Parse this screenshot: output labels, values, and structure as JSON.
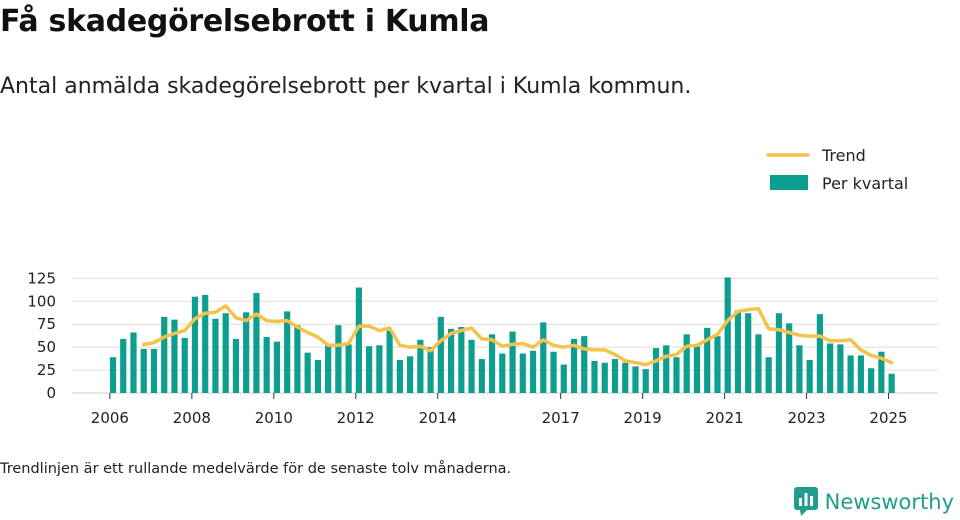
{
  "title": "Få skadegörelsebrott i Kumla",
  "subtitle": "Antal anmälda skadegörelsebrott per kvartal i Kumla kommun.",
  "footnote": "Trendlinjen är ett rullande medelvärde för de senaste tolv månaderna.",
  "brand": "Newsworthy",
  "colors": {
    "bar": "#0e9e90",
    "trend": "#f5c24c",
    "grid": "#dddddd",
    "brand": "#1f9e8e"
  },
  "chart_data": {
    "type": "bar",
    "x_ticks": [
      "2006",
      "2008",
      "2010",
      "2012",
      "2014",
      "2017",
      "2019",
      "2021",
      "2023",
      "2025"
    ],
    "y_ticks": [
      0,
      25,
      50,
      75,
      100,
      125
    ],
    "ylim": [
      0,
      128
    ],
    "grid": true,
    "legend_position": "top-right",
    "series": [
      {
        "name": "Per kvartal",
        "type": "bar",
        "x": [
          "2006Q1",
          "2006Q2",
          "2006Q3",
          "2006Q4",
          "2007Q1",
          "2007Q2",
          "2007Q3",
          "2007Q4",
          "2008Q1",
          "2008Q2",
          "2008Q3",
          "2008Q4",
          "2009Q1",
          "2009Q2",
          "2009Q3",
          "2009Q4",
          "2010Q1",
          "2010Q2",
          "2010Q3",
          "2010Q4",
          "2011Q1",
          "2011Q2",
          "2011Q3",
          "2011Q4",
          "2012Q1",
          "2012Q2",
          "2012Q3",
          "2012Q4",
          "2013Q1",
          "2013Q2",
          "2013Q3",
          "2013Q4",
          "2014Q1",
          "2014Q2",
          "2014Q3",
          "2014Q4",
          "2015Q1",
          "2015Q2",
          "2015Q3",
          "2015Q4",
          "2016Q1",
          "2016Q2",
          "2016Q3",
          "2016Q4",
          "2017Q1",
          "2017Q2",
          "2017Q3",
          "2017Q4",
          "2018Q1",
          "2018Q2",
          "2018Q3",
          "2018Q4",
          "2019Q1",
          "2019Q2",
          "2019Q3",
          "2019Q4",
          "2020Q1",
          "2020Q2",
          "2020Q3",
          "2020Q4",
          "2021Q1",
          "2021Q2",
          "2021Q3",
          "2021Q4",
          "2022Q1",
          "2022Q2",
          "2022Q3",
          "2022Q4",
          "2023Q1",
          "2023Q2",
          "2023Q3",
          "2023Q4",
          "2024Q1",
          "2024Q2",
          "2024Q3",
          "2024Q4",
          "2025Q1"
        ],
        "values": [
          39,
          59,
          66,
          48,
          48,
          83,
          80,
          60,
          105,
          107,
          81,
          87,
          59,
          88,
          109,
          61,
          56,
          89,
          74,
          44,
          36,
          53,
          74,
          53,
          115,
          51,
          52,
          68,
          36,
          40,
          58,
          50,
          83,
          70,
          72,
          58,
          37,
          64,
          43,
          67,
          43,
          46,
          77,
          45,
          31,
          59,
          62,
          35,
          33,
          37,
          33,
          29,
          26,
          49,
          52,
          39,
          64,
          51,
          71,
          62,
          126,
          90,
          87,
          64,
          39,
          87,
          76,
          52,
          36,
          86,
          54,
          53,
          41,
          41,
          27,
          45,
          21
        ]
      },
      {
        "name": "Trend",
        "type": "line",
        "values": [
          null,
          null,
          null,
          53,
          55,
          61,
          65,
          68,
          81,
          87,
          88,
          95,
          82,
          79,
          86,
          79,
          78,
          79,
          72,
          66,
          61,
          52,
          52,
          54,
          73,
          73,
          68,
          71,
          52,
          50,
          51,
          46,
          57,
          65,
          68,
          71,
          59,
          58,
          51,
          53,
          54,
          50,
          58,
          52,
          50,
          52,
          48,
          47,
          47,
          42,
          35,
          33,
          31,
          35,
          40,
          42,
          51,
          52,
          58,
          64,
          79,
          89,
          91,
          92,
          70,
          69,
          66,
          63,
          62,
          62,
          57,
          57,
          58,
          47,
          41,
          38,
          33
        ]
      }
    ]
  }
}
